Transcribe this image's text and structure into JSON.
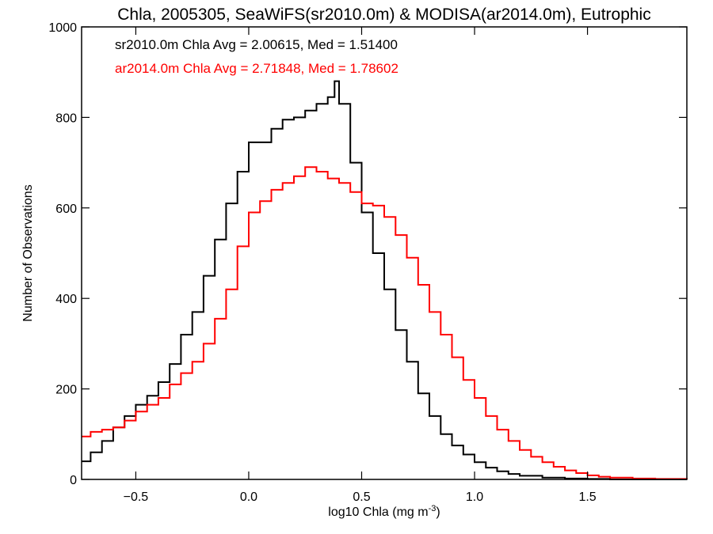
{
  "chart_data": {
    "type": "line",
    "style": "step-histogram",
    "title": "Chla, 2005305, SeaWiFS(sr2010.0m) & MODISA(ar2014.0m), Eutrophic",
    "xlabel_prefix": "log10 Chla (mg m",
    "xlabel_superscript": "-3",
    "xlabel_suffix": ")",
    "ylabel": "Number of Observations",
    "xlim": [
      -0.74,
      1.94
    ],
    "ylim": [
      0,
      1000
    ],
    "x_ticks": [
      -0.5,
      0.0,
      0.5,
      1.0,
      1.5
    ],
    "x_tick_labels": [
      "−0.5",
      "0.0",
      "0.5",
      "1.0",
      "1.5"
    ],
    "y_ticks": [
      0,
      200,
      400,
      600,
      800,
      1000
    ],
    "y_tick_labels": [
      "0",
      "200",
      "400",
      "600",
      "800",
      "1000"
    ],
    "grid": false,
    "series": [
      {
        "stat_label": "sr2010.0m Chla Avg = 2.00615, Med = 1.51400",
        "color": "#000000",
        "points": [
          [
            -0.74,
            40
          ],
          [
            -0.7,
            60
          ],
          [
            -0.65,
            85
          ],
          [
            -0.6,
            115
          ],
          [
            -0.55,
            140
          ],
          [
            -0.5,
            165
          ],
          [
            -0.45,
            185
          ],
          [
            -0.4,
            215
          ],
          [
            -0.35,
            255
          ],
          [
            -0.3,
            320
          ],
          [
            -0.25,
            370
          ],
          [
            -0.2,
            450
          ],
          [
            -0.15,
            530
          ],
          [
            -0.1,
            610
          ],
          [
            -0.05,
            680
          ],
          [
            0.0,
            745
          ],
          [
            0.05,
            745
          ],
          [
            0.1,
            775
          ],
          [
            0.15,
            795
          ],
          [
            0.2,
            800
          ],
          [
            0.25,
            815
          ],
          [
            0.3,
            830
          ],
          [
            0.35,
            845
          ],
          [
            0.38,
            880
          ],
          [
            0.4,
            830
          ],
          [
            0.45,
            700
          ],
          [
            0.5,
            590
          ],
          [
            0.55,
            500
          ],
          [
            0.6,
            420
          ],
          [
            0.65,
            330
          ],
          [
            0.7,
            260
          ],
          [
            0.75,
            190
          ],
          [
            0.8,
            140
          ],
          [
            0.85,
            100
          ],
          [
            0.9,
            75
          ],
          [
            0.95,
            55
          ],
          [
            1.0,
            38
          ],
          [
            1.05,
            26
          ],
          [
            1.1,
            18
          ],
          [
            1.15,
            12
          ],
          [
            1.2,
            8
          ],
          [
            1.3,
            4
          ],
          [
            1.4,
            2
          ],
          [
            1.5,
            1
          ],
          [
            1.6,
            0
          ],
          [
            1.94,
            0
          ]
        ]
      },
      {
        "stat_label": "ar2014.0m Chla Avg = 2.71848, Med = 1.78602",
        "color": "#ff0000",
        "points": [
          [
            -0.74,
            95
          ],
          [
            -0.7,
            105
          ],
          [
            -0.65,
            110
          ],
          [
            -0.6,
            115
          ],
          [
            -0.55,
            130
          ],
          [
            -0.5,
            150
          ],
          [
            -0.45,
            165
          ],
          [
            -0.4,
            180
          ],
          [
            -0.35,
            210
          ],
          [
            -0.3,
            235
          ],
          [
            -0.25,
            260
          ],
          [
            -0.2,
            300
          ],
          [
            -0.15,
            355
          ],
          [
            -0.1,
            420
          ],
          [
            -0.05,
            515
          ],
          [
            0.0,
            590
          ],
          [
            0.05,
            615
          ],
          [
            0.1,
            640
          ],
          [
            0.15,
            655
          ],
          [
            0.2,
            670
          ],
          [
            0.25,
            690
          ],
          [
            0.3,
            680
          ],
          [
            0.35,
            665
          ],
          [
            0.4,
            655
          ],
          [
            0.45,
            635
          ],
          [
            0.5,
            610
          ],
          [
            0.55,
            605
          ],
          [
            0.6,
            580
          ],
          [
            0.65,
            540
          ],
          [
            0.7,
            490
          ],
          [
            0.75,
            430
          ],
          [
            0.8,
            370
          ],
          [
            0.85,
            320
          ],
          [
            0.9,
            270
          ],
          [
            0.95,
            220
          ],
          [
            1.0,
            180
          ],
          [
            1.05,
            140
          ],
          [
            1.1,
            110
          ],
          [
            1.15,
            85
          ],
          [
            1.2,
            65
          ],
          [
            1.25,
            50
          ],
          [
            1.3,
            38
          ],
          [
            1.35,
            28
          ],
          [
            1.4,
            20
          ],
          [
            1.45,
            14
          ],
          [
            1.5,
            9
          ],
          [
            1.55,
            6
          ],
          [
            1.6,
            4
          ],
          [
            1.7,
            2
          ],
          [
            1.8,
            1
          ],
          [
            1.94,
            0
          ]
        ]
      }
    ]
  }
}
